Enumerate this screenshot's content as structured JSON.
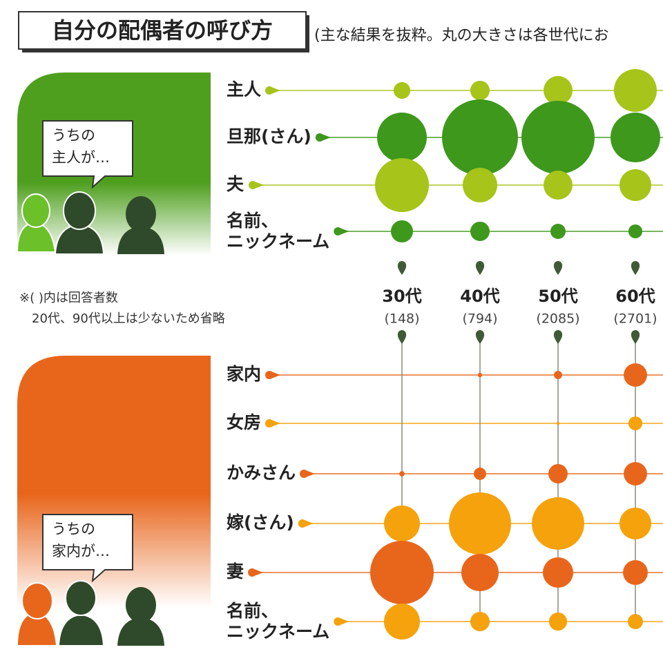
{
  "chart_data": {
    "type": "bubble-grid",
    "title": "自分の配偶者の呼び方",
    "subtitle": "(主な結果を抜粋。丸の大きさは各世代にお",
    "note": [
      "※( )内は回答者数",
      "20代、90代以上は少ないため省略"
    ],
    "columns": [
      {
        "label": "30代",
        "n": "(148)"
      },
      {
        "label": "40代",
        "n": "(794)"
      },
      {
        "label": "50代",
        "n": "(2085)"
      },
      {
        "label": "60代",
        "n": "(2701)"
      }
    ],
    "groups": [
      {
        "speech": [
          "うちの",
          "主人が…"
        ],
        "color": "#4e9f1e",
        "rows": [
          {
            "label": [
              "主人"
            ],
            "color": "#a6c41a",
            "values": [
              2.9,
              3.9,
              8.7,
              19.1
            ]
          },
          {
            "label": [
              "旦那(さん)"
            ],
            "color": "#3d981c",
            "values": [
              25.7,
              60,
              55.7,
              25.7
            ]
          },
          {
            "label": [
              "夫"
            ],
            "color": "#a6c41a",
            "values": [
              30.2,
              12.4,
              8.7,
              10.5
            ]
          },
          {
            "label": [
              "名前、",
              "ニックネーム"
            ],
            "color": "#3d981c",
            "values": [
              5.1,
              3.9,
              2.4,
              2.0
            ]
          }
        ]
      },
      {
        "speech": [
          "うちの",
          "家内が…"
        ],
        "color": "#e8661c",
        "rows": [
          {
            "label": [
              "家内"
            ],
            "color": "#e8661c",
            "values": [
              0,
              0.2,
              0.7,
              5.7
            ]
          },
          {
            "label": [
              "女房"
            ],
            "color": "#f6a20c",
            "values": [
              0,
              0,
              0.1,
              2.0
            ]
          },
          {
            "label": [
              "かみさん"
            ],
            "color": "#e8661c",
            "values": [
              0.3,
              1.6,
              3.9,
              5.7
            ]
          },
          {
            "label": [
              "嫁(さん)"
            ],
            "color": "#f6a20c",
            "values": [
              13.4,
              40.2,
              28.6,
              10.5
            ]
          },
          {
            "label": [
              "妻"
            ],
            "color": "#e8661c",
            "values": [
              42,
              14.5,
              9.6,
              6.4
            ]
          },
          {
            "label": [
              "名前、",
              "ニックネーム"
            ],
            "color": "#f6a20c",
            "values": [
              13.4,
              3.9,
              3.4,
              2.4
            ]
          }
        ]
      }
    ]
  }
}
